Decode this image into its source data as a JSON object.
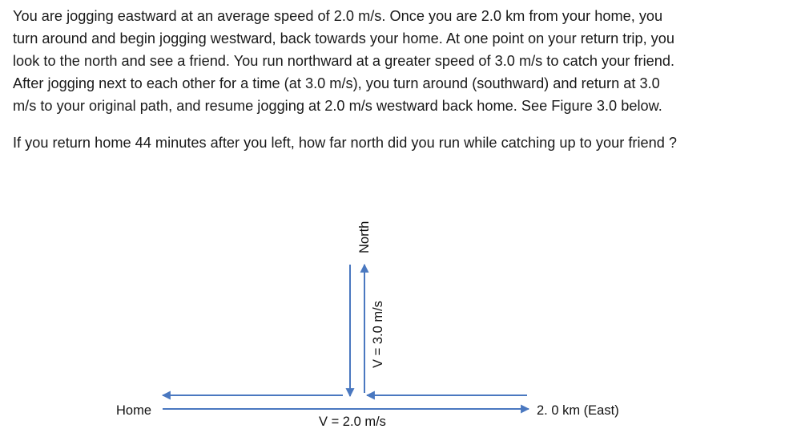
{
  "problem": {
    "paragraph_1_lines": [
      "You are jogging eastward at an average speed of 2.0 m/s. Once you are 2.0 km from your home, you",
      "turn around and begin jogging westward, back towards your home. At one point on your return trip, you",
      "look to the north and see a friend. You run northward at a greater speed of 3.0 m/s to catch your friend.",
      "After jogging next to each other for a time (at 3.0 m/s), you turn around (southward) and return at 3.0",
      "m/s to your original path, and resume jogging at 2.0 m/s westward back home. See Figure 3.0 below."
    ],
    "question": "If you return home 44 minutes after you left, how far north did you run while catching up to your friend ?"
  },
  "figure": {
    "home_label": "Home",
    "east_label": "2. 0 km (East)",
    "horizontal_speed_label": "V = 2.0 m/s",
    "north_label": "North",
    "vertical_speed_label": "V = 3.0 m/s",
    "arrow_color": "#4a78c0"
  }
}
